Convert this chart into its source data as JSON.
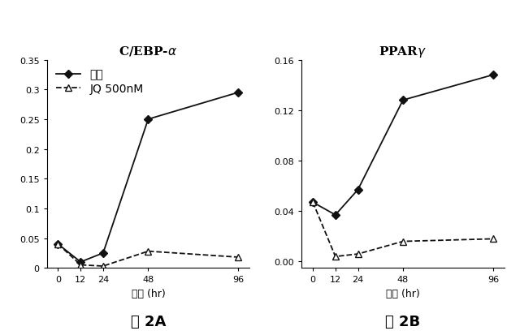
{
  "x": [
    0,
    12,
    24,
    48,
    96
  ],
  "cebp_control": [
    0.04,
    0.01,
    0.025,
    0.25,
    0.295
  ],
  "cebp_jq": [
    0.04,
    0.005,
    0.003,
    0.028,
    0.018
  ],
  "ppar_control": [
    0.047,
    0.037,
    0.057,
    0.128,
    0.148
  ],
  "ppar_jq": [
    0.047,
    0.004,
    0.006,
    0.016,
    0.018
  ],
  "xlabel": "時間 (hr)",
  "legend_control": "対照",
  "legend_jq": "JQ 500nM",
  "caption_left": "図 2A",
  "caption_right": "図 2B",
  "ylim_left": [
    0,
    0.35
  ],
  "yticks_left": [
    0,
    0.05,
    0.1,
    0.15,
    0.2,
    0.25,
    0.3,
    0.35
  ],
  "ytick_labels_left": [
    "0",
    "0.05",
    "0.1",
    "0.15",
    "0.2",
    "0.25",
    "0.3",
    "0.35"
  ],
  "ylim_right": [
    -0.005,
    0.16
  ],
  "yticks_right": [
    0.0,
    0.04,
    0.08,
    0.12,
    0.16
  ],
  "ytick_labels_right": [
    "0.00",
    "0.04",
    "0.08",
    "0.12",
    "0.16"
  ],
  "xticks": [
    0,
    12,
    24,
    48,
    96
  ],
  "line_color": "#111111"
}
